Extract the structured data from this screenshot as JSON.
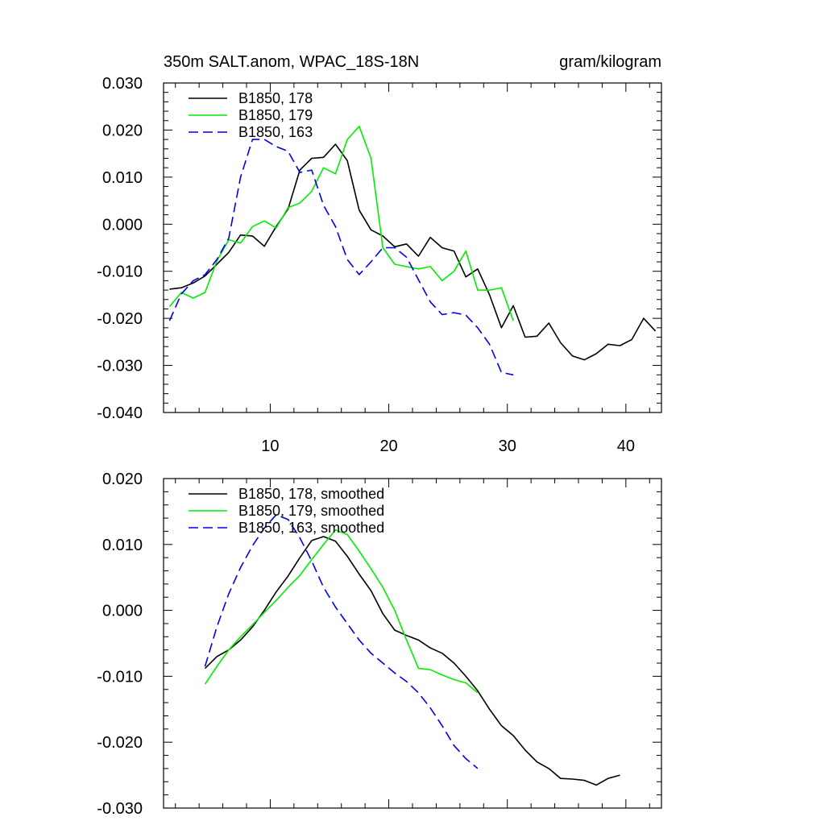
{
  "chart_data": [
    {
      "type": "line",
      "title_left": "350m SALT.anom, WPAC_18S-18N",
      "title_right": "gram/kilogram",
      "xlim": [
        1,
        43
      ],
      "ylim": [
        -0.04,
        0.03
      ],
      "xticks": [
        10,
        20,
        30,
        40
      ],
      "xtick_labels": [
        "10",
        "20",
        "30",
        "40"
      ],
      "yticks": [
        0.03,
        0.02,
        0.01,
        0.0,
        -0.01,
        -0.02,
        -0.03,
        -0.04
      ],
      "ytick_labels": [
        "0.030",
        "0.020",
        "0.010",
        "0.000",
        "-0.010",
        "-0.020",
        "-0.030",
        "-0.040"
      ],
      "legend_position": "top-left",
      "series": [
        {
          "name": "B1850, 178",
          "color": "#000000",
          "dash": "solid",
          "x": [
            1.5,
            2.5,
            3.5,
            4.5,
            5.5,
            6.5,
            7.5,
            8.5,
            9.5,
            10.5,
            11.5,
            12.5,
            13.5,
            14.5,
            15.5,
            16.5,
            17.5,
            18.5,
            19.5,
            20.5,
            21.5,
            22.5,
            23.5,
            24.5,
            25.5,
            26.5,
            27.5,
            28.5,
            29.5,
            30.5,
            31.5,
            32.5,
            33.5,
            34.5,
            35.5,
            36.5,
            37.5,
            38.5,
            39.5,
            40.5,
            41.5,
            42.5
          ],
          "values": [
            -0.0138,
            -0.0135,
            -0.0125,
            -0.011,
            -0.0085,
            -0.006,
            -0.0023,
            -0.0025,
            -0.0047,
            -0.0005,
            0.0032,
            0.0115,
            0.014,
            0.0142,
            0.017,
            0.0135,
            0.003,
            -0.0012,
            -0.0025,
            -0.0048,
            -0.0042,
            -0.0068,
            -0.0028,
            -0.005,
            -0.0057,
            -0.0112,
            -0.0095,
            -0.015,
            -0.022,
            -0.0173,
            -0.024,
            -0.0238,
            -0.021,
            -0.0252,
            -0.028,
            -0.0288,
            -0.0275,
            -0.0255,
            -0.0258,
            -0.0245,
            -0.02,
            -0.0227
          ]
        },
        {
          "name": "B1850, 179",
          "color": "#00ee00",
          "dash": "solid",
          "x": [
            1.5,
            2.5,
            3.5,
            4.5,
            5.5,
            6.5,
            7.5,
            8.5,
            9.5,
            10.5,
            11.5,
            12.5,
            13.5,
            14.5,
            15.5,
            16.5,
            17.5,
            18.5,
            19.5,
            20.5,
            21.5,
            22.5,
            23.5,
            24.5,
            25.5,
            26.5,
            27.5,
            28.5,
            29.5,
            30.5
          ],
          "values": [
            -0.0175,
            -0.0145,
            -0.0157,
            -0.0145,
            -0.0078,
            -0.0033,
            -0.004,
            -0.0005,
            0.0007,
            -0.0008,
            0.0035,
            0.0045,
            0.007,
            0.012,
            0.0107,
            0.018,
            0.0208,
            0.014,
            -0.005,
            -0.0085,
            -0.009,
            -0.0095,
            -0.009,
            -0.012,
            -0.01,
            -0.0057,
            -0.014,
            -0.014,
            -0.0135,
            -0.0205
          ]
        },
        {
          "name": "B1850, 163",
          "color": "#0000ee",
          "dash": "dashed",
          "x": [
            1.5,
            2.5,
            3.5,
            4.5,
            5.5,
            6.5,
            7.5,
            8.5,
            9.5,
            10.5,
            11.5,
            12.5,
            13.5,
            14.5,
            15.5,
            16.5,
            17.5,
            18.5,
            19.5,
            20.5,
            21.5,
            22.5,
            23.5,
            24.5,
            25.5,
            26.5,
            27.5,
            28.5,
            29.5,
            30.5
          ],
          "values": [
            -0.0205,
            -0.0148,
            -0.012,
            -0.0107,
            -0.0075,
            -0.003,
            0.01,
            0.018,
            0.018,
            0.0165,
            0.0155,
            0.011,
            0.0115,
            0.004,
            -0.0005,
            -0.0075,
            -0.0107,
            -0.008,
            -0.005,
            -0.005,
            -0.007,
            -0.0118,
            -0.0165,
            -0.0192,
            -0.0188,
            -0.0193,
            -0.022,
            -0.0255,
            -0.0315,
            -0.032
          ]
        }
      ]
    },
    {
      "type": "line",
      "xlim": [
        1,
        43
      ],
      "ylim": [
        -0.03,
        0.02
      ],
      "xticks": [
        10,
        20,
        30,
        40
      ],
      "yticks": [
        0.02,
        0.01,
        0.0,
        -0.01,
        -0.02,
        -0.03
      ],
      "ytick_labels": [
        "0.020",
        "0.010",
        "0.000",
        "-0.010",
        "-0.020",
        "-0.030"
      ],
      "legend_position": "top-left",
      "series": [
        {
          "name": "B1850, 178, smoothed",
          "color": "#000000",
          "dash": "solid",
          "x": [
            4.5,
            5.5,
            6.5,
            7.5,
            8.5,
            9.5,
            10.5,
            11.5,
            12.5,
            13.5,
            14.5,
            15.5,
            16.5,
            17.5,
            18.5,
            19.5,
            20.5,
            21.5,
            22.5,
            23.5,
            24.5,
            25.5,
            26.5,
            27.5,
            28.5,
            29.5,
            30.5,
            31.5,
            32.5,
            33.5,
            34.5,
            35.5,
            36.5,
            37.5,
            38.5,
            39.5
          ],
          "values": [
            -0.0088,
            -0.007,
            -0.006,
            -0.0045,
            -0.0025,
            0.0,
            0.0028,
            0.0052,
            0.008,
            0.0106,
            0.0112,
            0.0105,
            0.0082,
            0.0055,
            0.003,
            -0.0005,
            -0.003,
            -0.0038,
            -0.0045,
            -0.0057,
            -0.0065,
            -0.008,
            -0.01,
            -0.0122,
            -0.015,
            -0.0175,
            -0.019,
            -0.0212,
            -0.023,
            -0.024,
            -0.0255,
            -0.0256,
            -0.0258,
            -0.0265,
            -0.0255,
            -0.025
          ]
        },
        {
          "name": "B1850, 179, smoothed",
          "color": "#00ee00",
          "dash": "solid",
          "x": [
            4.5,
            5.5,
            6.5,
            7.5,
            8.5,
            9.5,
            10.5,
            11.5,
            12.5,
            13.5,
            14.5,
            15.5,
            16.5,
            17.5,
            18.5,
            19.5,
            20.5,
            21.5,
            22.5,
            23.5,
            24.5,
            25.5,
            26.5,
            27.5
          ],
          "values": [
            -0.0112,
            -0.0085,
            -0.006,
            -0.004,
            -0.0022,
            -0.0003,
            0.0015,
            0.0035,
            0.0053,
            0.0077,
            0.01,
            0.0122,
            0.0115,
            0.009,
            0.0063,
            0.0035,
            0.0,
            -0.0045,
            -0.0088,
            -0.009,
            -0.0098,
            -0.0105,
            -0.011,
            -0.0125
          ]
        },
        {
          "name": "B1850, 163, smoothed",
          "color": "#0000ee",
          "dash": "dashed",
          "x": [
            4.5,
            5.5,
            6.5,
            7.5,
            8.5,
            9.5,
            10.5,
            11.5,
            12.5,
            13.5,
            14.5,
            15.5,
            16.5,
            17.5,
            18.5,
            19.5,
            20.5,
            21.5,
            22.5,
            23.5,
            24.5,
            25.5,
            26.5,
            27.5
          ],
          "values": [
            -0.0085,
            -0.0025,
            0.0025,
            0.0065,
            0.0098,
            0.0125,
            0.0145,
            0.0138,
            0.011,
            0.0075,
            0.0035,
            0.0005,
            -0.002,
            -0.0045,
            -0.0065,
            -0.008,
            -0.0095,
            -0.0108,
            -0.0125,
            -0.0148,
            -0.0175,
            -0.0205,
            -0.0225,
            -0.024
          ]
        }
      ]
    }
  ]
}
